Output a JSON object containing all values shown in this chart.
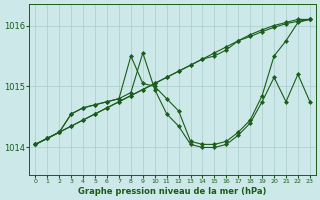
{
  "background_color": "#cce8e8",
  "grid_color": "#aacccc",
  "line_color": "#1a5c1a",
  "title": "Graphe pression niveau de la mer (hPa)",
  "xlim": [
    -0.5,
    23.5
  ],
  "ylim": [
    1013.55,
    1016.35
  ],
  "yticks": [
    1014,
    1015,
    1016
  ],
  "xticks": [
    0,
    1,
    2,
    3,
    4,
    5,
    6,
    7,
    8,
    9,
    10,
    11,
    12,
    13,
    14,
    15,
    16,
    17,
    18,
    19,
    20,
    21,
    22,
    23
  ],
  "series": [
    {
      "x": [
        0,
        1,
        2,
        3,
        4,
        5,
        6,
        7,
        8,
        9,
        10,
        11,
        12,
        13,
        14,
        15,
        16,
        17,
        18,
        19,
        20,
        21,
        22,
        23
      ],
      "y": [
        1014.05,
        1014.15,
        1014.25,
        1014.35,
        1014.45,
        1014.55,
        1014.65,
        1014.75,
        1014.85,
        1014.95,
        1015.05,
        1015.15,
        1015.25,
        1015.35,
        1015.45,
        1015.55,
        1015.65,
        1015.75,
        1015.82,
        1015.9,
        1015.97,
        1016.03,
        1016.07,
        1016.1
      ]
    },
    {
      "x": [
        0,
        1,
        2,
        3,
        4,
        5,
        6,
        7,
        8,
        9,
        10,
        11,
        12,
        13,
        14,
        15,
        16,
        17,
        18,
        19,
        20,
        21,
        22,
        23
      ],
      "y": [
        1014.05,
        1014.15,
        1014.25,
        1014.35,
        1014.45,
        1014.55,
        1014.65,
        1014.75,
        1014.85,
        1014.95,
        1015.05,
        1015.15,
        1015.25,
        1015.35,
        1015.45,
        1015.5,
        1015.6,
        1015.75,
        1015.85,
        1015.93,
        1016.0,
        1016.05,
        1016.1,
        1016.1
      ]
    },
    {
      "x": [
        0,
        1,
        2,
        3,
        4,
        5,
        6,
        7,
        8,
        9,
        10,
        11,
        12,
        13,
        14,
        15,
        16,
        17,
        18,
        19,
        20,
        21,
        22,
        23
      ],
      "y": [
        1014.05,
        1014.15,
        1014.25,
        1014.55,
        1014.65,
        1014.7,
        1014.75,
        1014.8,
        1015.5,
        1015.05,
        1015.0,
        1014.8,
        1014.6,
        1014.1,
        1014.05,
        1014.05,
        1014.1,
        1014.25,
        1014.45,
        1014.85,
        1015.5,
        1015.75,
        1016.05,
        1016.1
      ]
    },
    {
      "x": [
        0,
        1,
        2,
        3,
        4,
        5,
        6,
        7,
        8,
        9,
        10,
        11,
        12,
        13,
        14,
        15,
        16,
        17,
        18,
        19,
        20,
        21,
        22,
        23
      ],
      "y": [
        1014.05,
        1014.15,
        1014.25,
        1014.55,
        1014.65,
        1014.7,
        1014.75,
        1014.8,
        1014.9,
        1015.55,
        1014.95,
        1014.55,
        1014.35,
        1014.05,
        1014.0,
        1014.0,
        1014.05,
        1014.2,
        1014.4,
        1014.75,
        1015.15,
        1014.75,
        1015.2,
        1014.75
      ]
    }
  ]
}
